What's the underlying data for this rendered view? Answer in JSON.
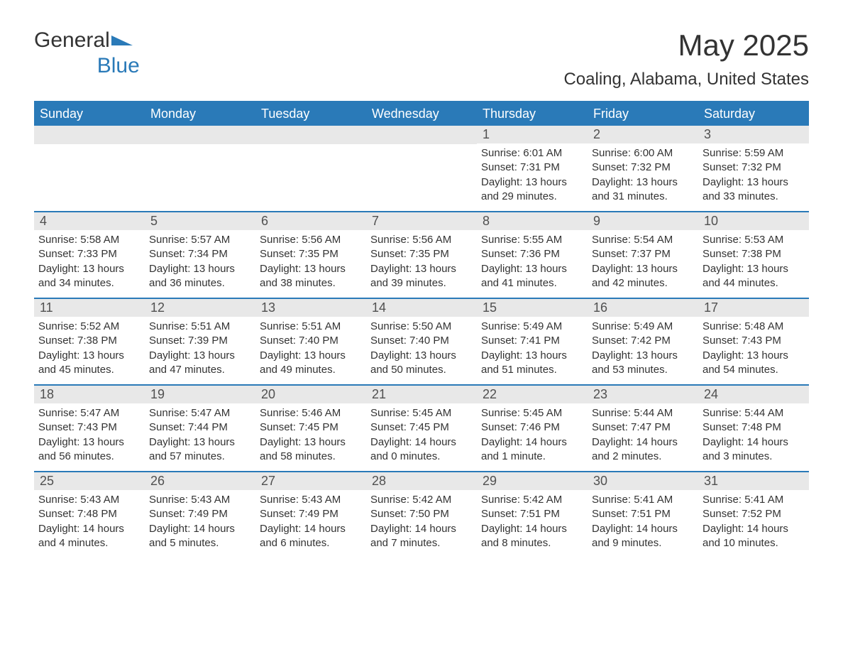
{
  "brand": {
    "part1": "General",
    "part2": "Blue"
  },
  "title": "May 2025",
  "location": "Coaling, Alabama, United States",
  "colors": {
    "header_bg": "#2a7ab8",
    "header_text": "#ffffff",
    "daynum_bg": "#e8e8e8",
    "daynum_text": "#505050",
    "body_text": "#333333",
    "page_bg": "#ffffff",
    "border": "#2a7ab8",
    "logo_blue": "#2a7ab8"
  },
  "layout": {
    "columns": 7,
    "rows": 5,
    "first_day_column_index": 4,
    "font_family": "Arial",
    "title_fontsize": 42,
    "location_fontsize": 24,
    "dayheader_fontsize": 18,
    "daynum_fontsize": 18,
    "detail_fontsize": 15
  },
  "day_names": [
    "Sunday",
    "Monday",
    "Tuesday",
    "Wednesday",
    "Thursday",
    "Friday",
    "Saturday"
  ],
  "days": [
    {
      "n": 1,
      "sunrise": "6:01 AM",
      "sunset": "7:31 PM",
      "daylight": "13 hours and 29 minutes."
    },
    {
      "n": 2,
      "sunrise": "6:00 AM",
      "sunset": "7:32 PM",
      "daylight": "13 hours and 31 minutes."
    },
    {
      "n": 3,
      "sunrise": "5:59 AM",
      "sunset": "7:32 PM",
      "daylight": "13 hours and 33 minutes."
    },
    {
      "n": 4,
      "sunrise": "5:58 AM",
      "sunset": "7:33 PM",
      "daylight": "13 hours and 34 minutes."
    },
    {
      "n": 5,
      "sunrise": "5:57 AM",
      "sunset": "7:34 PM",
      "daylight": "13 hours and 36 minutes."
    },
    {
      "n": 6,
      "sunrise": "5:56 AM",
      "sunset": "7:35 PM",
      "daylight": "13 hours and 38 minutes."
    },
    {
      "n": 7,
      "sunrise": "5:56 AM",
      "sunset": "7:35 PM",
      "daylight": "13 hours and 39 minutes."
    },
    {
      "n": 8,
      "sunrise": "5:55 AM",
      "sunset": "7:36 PM",
      "daylight": "13 hours and 41 minutes."
    },
    {
      "n": 9,
      "sunrise": "5:54 AM",
      "sunset": "7:37 PM",
      "daylight": "13 hours and 42 minutes."
    },
    {
      "n": 10,
      "sunrise": "5:53 AM",
      "sunset": "7:38 PM",
      "daylight": "13 hours and 44 minutes."
    },
    {
      "n": 11,
      "sunrise": "5:52 AM",
      "sunset": "7:38 PM",
      "daylight": "13 hours and 45 minutes."
    },
    {
      "n": 12,
      "sunrise": "5:51 AM",
      "sunset": "7:39 PM",
      "daylight": "13 hours and 47 minutes."
    },
    {
      "n": 13,
      "sunrise": "5:51 AM",
      "sunset": "7:40 PM",
      "daylight": "13 hours and 49 minutes."
    },
    {
      "n": 14,
      "sunrise": "5:50 AM",
      "sunset": "7:40 PM",
      "daylight": "13 hours and 50 minutes."
    },
    {
      "n": 15,
      "sunrise": "5:49 AM",
      "sunset": "7:41 PM",
      "daylight": "13 hours and 51 minutes."
    },
    {
      "n": 16,
      "sunrise": "5:49 AM",
      "sunset": "7:42 PM",
      "daylight": "13 hours and 53 minutes."
    },
    {
      "n": 17,
      "sunrise": "5:48 AM",
      "sunset": "7:43 PM",
      "daylight": "13 hours and 54 minutes."
    },
    {
      "n": 18,
      "sunrise": "5:47 AM",
      "sunset": "7:43 PM",
      "daylight": "13 hours and 56 minutes."
    },
    {
      "n": 19,
      "sunrise": "5:47 AM",
      "sunset": "7:44 PM",
      "daylight": "13 hours and 57 minutes."
    },
    {
      "n": 20,
      "sunrise": "5:46 AM",
      "sunset": "7:45 PM",
      "daylight": "13 hours and 58 minutes."
    },
    {
      "n": 21,
      "sunrise": "5:45 AM",
      "sunset": "7:45 PM",
      "daylight": "14 hours and 0 minutes."
    },
    {
      "n": 22,
      "sunrise": "5:45 AM",
      "sunset": "7:46 PM",
      "daylight": "14 hours and 1 minute."
    },
    {
      "n": 23,
      "sunrise": "5:44 AM",
      "sunset": "7:47 PM",
      "daylight": "14 hours and 2 minutes."
    },
    {
      "n": 24,
      "sunrise": "5:44 AM",
      "sunset": "7:48 PM",
      "daylight": "14 hours and 3 minutes."
    },
    {
      "n": 25,
      "sunrise": "5:43 AM",
      "sunset": "7:48 PM",
      "daylight": "14 hours and 4 minutes."
    },
    {
      "n": 26,
      "sunrise": "5:43 AM",
      "sunset": "7:49 PM",
      "daylight": "14 hours and 5 minutes."
    },
    {
      "n": 27,
      "sunrise": "5:43 AM",
      "sunset": "7:49 PM",
      "daylight": "14 hours and 6 minutes."
    },
    {
      "n": 28,
      "sunrise": "5:42 AM",
      "sunset": "7:50 PM",
      "daylight": "14 hours and 7 minutes."
    },
    {
      "n": 29,
      "sunrise": "5:42 AM",
      "sunset": "7:51 PM",
      "daylight": "14 hours and 8 minutes."
    },
    {
      "n": 30,
      "sunrise": "5:41 AM",
      "sunset": "7:51 PM",
      "daylight": "14 hours and 9 minutes."
    },
    {
      "n": 31,
      "sunrise": "5:41 AM",
      "sunset": "7:52 PM",
      "daylight": "14 hours and 10 minutes."
    }
  ],
  "labels": {
    "sunrise": "Sunrise: ",
    "sunset": "Sunset: ",
    "daylight": "Daylight: "
  }
}
